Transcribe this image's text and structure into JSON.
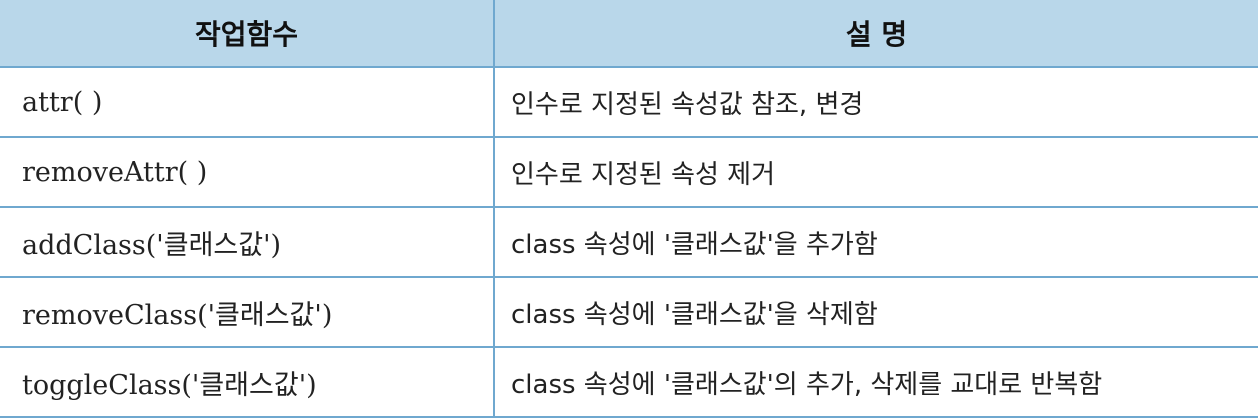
{
  "table": {
    "headers": [
      "작업함수",
      "설 명"
    ],
    "rows": [
      {
        "func": "attr( )",
        "desc": "인수로 지정된 속성값 참조, 변경"
      },
      {
        "func": "removeAttr( )",
        "desc": "인수로 지정된 속성 제거"
      },
      {
        "func": "addClass('클래스값')",
        "desc": "class 속성에 '클래스값'을 추가함"
      },
      {
        "func": "removeClass('클래스값')",
        "desc": "class 속성에 '클래스값'을 삭제함"
      },
      {
        "func": "toggleClass('클래스값')",
        "desc": "class 속성에 '클래스값'의 추가, 삭제를 교대로 반복함"
      }
    ]
  },
  "colors": {
    "header_bg": "#b9d7ea",
    "border": "#6fa8cf"
  }
}
